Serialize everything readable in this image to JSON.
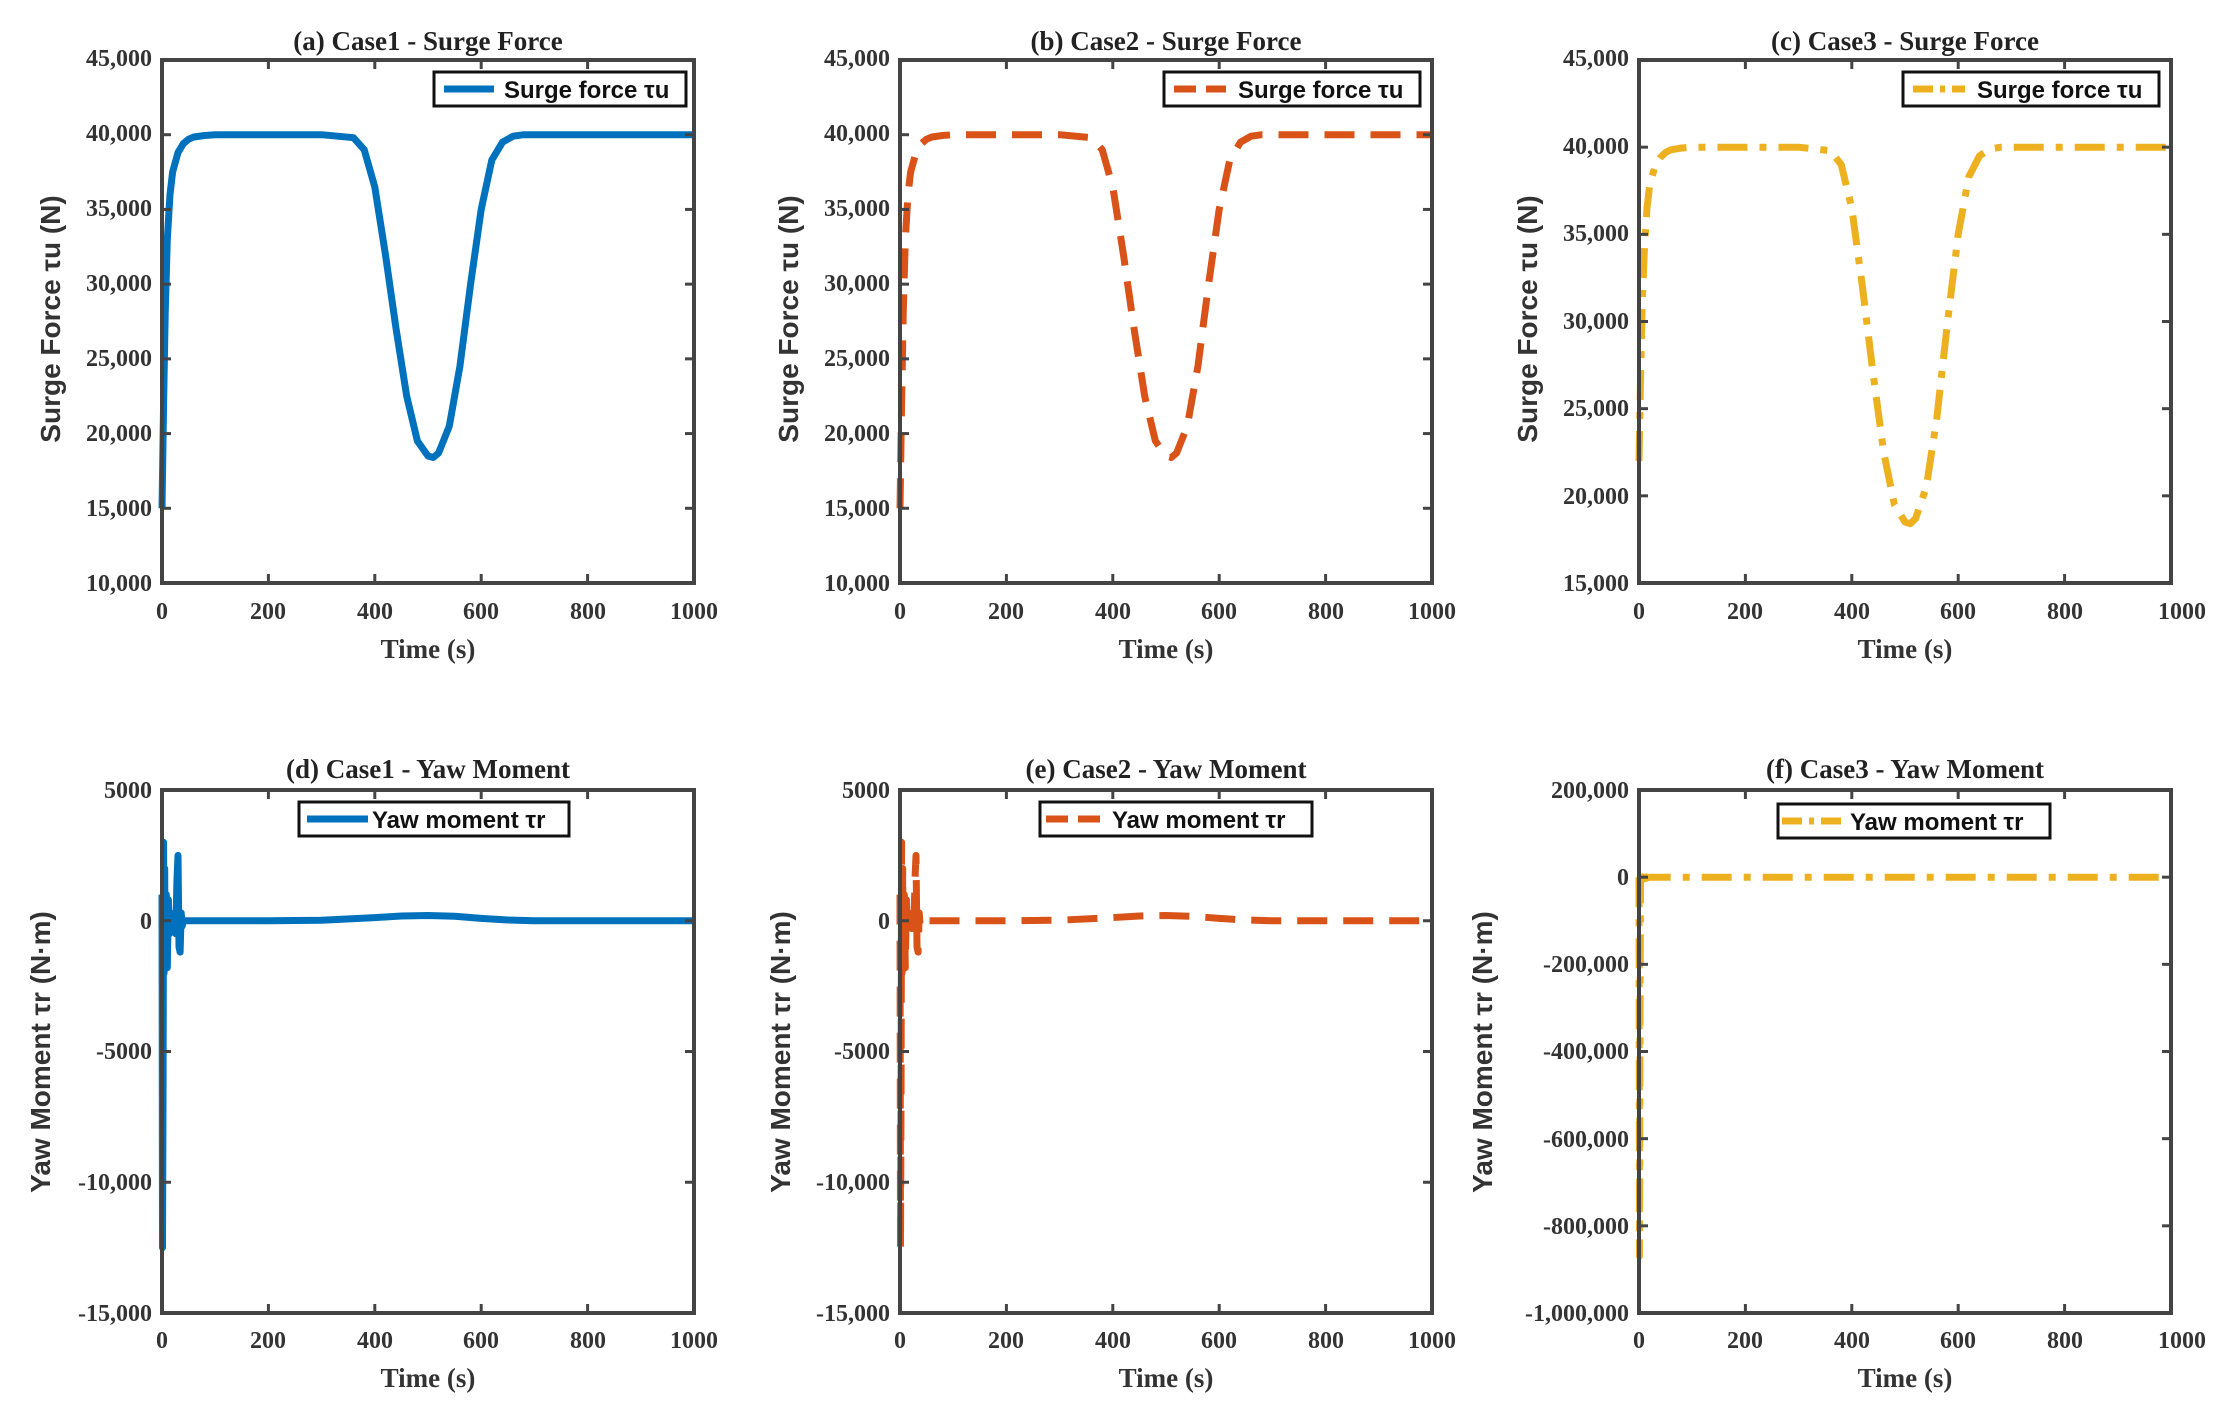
{
  "chart_data": [
    {
      "id": "a",
      "type": "line",
      "title": "(a) Case1 - Surge Force",
      "xlabel": "Time (s)",
      "ylabel": "Surge Force τu (N)",
      "xlim": [
        0,
        1000
      ],
      "ylim": [
        10000,
        45000
      ],
      "xticks": [
        0,
        200,
        400,
        600,
        800,
        1000
      ],
      "xtick_labels": [
        "0",
        "200",
        "400",
        "600",
        "800",
        "1000"
      ],
      "yticks": [
        10000,
        15000,
        20000,
        25000,
        30000,
        35000,
        40000,
        45000
      ],
      "ytick_labels": [
        "10,000",
        "15,000",
        "20,000",
        "25,000",
        "30,000",
        "35,000",
        "40,000",
        "45,000"
      ],
      "legend": "top-right",
      "series": [
        {
          "name": "Surge force τu",
          "color": "#0072BD",
          "style": "solid",
          "x": [
            0,
            3,
            6,
            10,
            15,
            20,
            30,
            40,
            50,
            60,
            80,
            100,
            200,
            300,
            360,
            380,
            400,
            420,
            440,
            460,
            480,
            500,
            510,
            520,
            540,
            560,
            580,
            600,
            620,
            640,
            660,
            680,
            700,
            800,
            900,
            1000
          ],
          "y": [
            15000,
            22000,
            28000,
            33000,
            36000,
            37500,
            38800,
            39400,
            39700,
            39850,
            39950,
            40000,
            40000,
            40000,
            39800,
            39000,
            36500,
            32000,
            27000,
            22500,
            19500,
            18500,
            18400,
            18700,
            20500,
            24500,
            30000,
            35000,
            38300,
            39500,
            39900,
            40000,
            40000,
            40000,
            40000,
            40000
          ]
        }
      ]
    },
    {
      "id": "b",
      "type": "line",
      "title": "(b) Case2 - Surge Force",
      "xlabel": "Time (s)",
      "ylabel": "Surge Force τu (N)",
      "xlim": [
        0,
        1000
      ],
      "ylim": [
        10000,
        45000
      ],
      "xticks": [
        0,
        200,
        400,
        600,
        800,
        1000
      ],
      "xtick_labels": [
        "0",
        "200",
        "400",
        "600",
        "800",
        "1000"
      ],
      "yticks": [
        10000,
        15000,
        20000,
        25000,
        30000,
        35000,
        40000,
        45000
      ],
      "ytick_labels": [
        "10,000",
        "15,000",
        "20,000",
        "25,000",
        "30,000",
        "35,000",
        "40,000",
        "45,000"
      ],
      "legend": "top-right",
      "series": [
        {
          "name": "Surge force τu",
          "color": "#D95319",
          "style": "dashed",
          "x": [
            0,
            3,
            6,
            10,
            15,
            20,
            30,
            40,
            50,
            60,
            80,
            100,
            200,
            300,
            360,
            380,
            400,
            420,
            440,
            460,
            480,
            500,
            510,
            520,
            540,
            560,
            580,
            600,
            620,
            640,
            660,
            680,
            700,
            800,
            900,
            1000
          ],
          "y": [
            15000,
            22000,
            28000,
            33000,
            36000,
            37500,
            38800,
            39400,
            39700,
            39850,
            39950,
            40000,
            40000,
            40000,
            39800,
            39000,
            36500,
            32000,
            27000,
            22500,
            19500,
            18500,
            18400,
            18700,
            20500,
            24500,
            30000,
            35000,
            38300,
            39500,
            39900,
            40000,
            40000,
            40000,
            40000,
            40000
          ]
        }
      ]
    },
    {
      "id": "c",
      "type": "line",
      "title": "(c) Case3 - Surge Force",
      "xlabel": "Time (s)",
      "ylabel": "Surge Force τu (N)",
      "xlim": [
        0,
        1000
      ],
      "ylim": [
        15000,
        45000
      ],
      "xticks": [
        0,
        200,
        400,
        600,
        800,
        1000
      ],
      "xtick_labels": [
        "0",
        "200",
        "400",
        "600",
        "800",
        "1000"
      ],
      "yticks": [
        15000,
        20000,
        25000,
        30000,
        35000,
        40000,
        45000
      ],
      "ytick_labels": [
        "15,000",
        "20,000",
        "25,000",
        "30,000",
        "35,000",
        "40,000",
        "45,000"
      ],
      "legend": "top-right",
      "series": [
        {
          "name": "Surge force τu",
          "color": "#EDB120",
          "style": "dashdot",
          "x": [
            0,
            3,
            6,
            10,
            15,
            20,
            30,
            40,
            50,
            60,
            80,
            100,
            200,
            300,
            360,
            380,
            400,
            420,
            440,
            460,
            480,
            500,
            510,
            520,
            540,
            560,
            580,
            600,
            620,
            640,
            660,
            680,
            700,
            800,
            900,
            1000
          ],
          "y": [
            22000,
            27000,
            31000,
            34000,
            36500,
            37800,
            38900,
            39400,
            39700,
            39850,
            39950,
            40000,
            40000,
            40000,
            39800,
            39000,
            36500,
            32000,
            27000,
            22500,
            19500,
            18500,
            18400,
            18700,
            20500,
            24500,
            30000,
            35000,
            38300,
            39500,
            39900,
            40000,
            40000,
            40000,
            40000,
            40000
          ]
        }
      ]
    },
    {
      "id": "d",
      "type": "line",
      "title": "(d) Case1 - Yaw Moment",
      "xlabel": "Time (s)",
      "ylabel": "Yaw Moment τr (N·m)",
      "xlim": [
        0,
        1000
      ],
      "ylim": [
        -15000,
        5000
      ],
      "xticks": [
        0,
        200,
        400,
        600,
        800,
        1000
      ],
      "xtick_labels": [
        "0",
        "200",
        "400",
        "600",
        "800",
        "1000"
      ],
      "yticks": [
        -15000,
        -10000,
        -5000,
        0,
        5000
      ],
      "ytick_labels": [
        "-15,000",
        "-10,000",
        "-5000",
        "0",
        "5000"
      ],
      "legend": "top-center",
      "series": [
        {
          "name": "Yaw moment τr",
          "color": "#0072BD",
          "style": "solid",
          "x": [
            0,
            1,
            2,
            3,
            4,
            5,
            6,
            8,
            10,
            12,
            14,
            16,
            18,
            20,
            22,
            24,
            26,
            28,
            30,
            32,
            34,
            36,
            38,
            40,
            45,
            50,
            100,
            200,
            300,
            400,
            450,
            500,
            550,
            600,
            650,
            700,
            800,
            900,
            1000
          ],
          "y": [
            1000,
            -12500,
            -6000,
            3000,
            -2000,
            2000,
            -1500,
            1000,
            -1800,
            800,
            -500,
            300,
            -200,
            200,
            -300,
            200,
            -500,
            1500,
            2500,
            -1000,
            -1200,
            300,
            -200,
            0,
            0,
            0,
            0,
            0,
            20,
            120,
            180,
            200,
            170,
            90,
            30,
            0,
            0,
            0,
            0
          ]
        }
      ]
    },
    {
      "id": "e",
      "type": "line",
      "title": "(e) Case2 - Yaw Moment",
      "xlabel": "Time (s)",
      "ylabel": "Yaw Moment τr (N·m)",
      "xlim": [
        0,
        1000
      ],
      "ylim": [
        -15000,
        5000
      ],
      "xticks": [
        0,
        200,
        400,
        600,
        800,
        1000
      ],
      "xtick_labels": [
        "0",
        "200",
        "400",
        "600",
        "800",
        "1000"
      ],
      "yticks": [
        -15000,
        -10000,
        -5000,
        0,
        5000
      ],
      "ytick_labels": [
        "-15,000",
        "-10,000",
        "-5000",
        "0",
        "5000"
      ],
      "legend": "top-center",
      "series": [
        {
          "name": "Yaw moment τr",
          "color": "#D95319",
          "style": "dashed",
          "x": [
            0,
            1,
            2,
            3,
            4,
            5,
            6,
            8,
            10,
            12,
            14,
            16,
            18,
            20,
            22,
            24,
            26,
            28,
            30,
            32,
            34,
            36,
            38,
            40,
            45,
            50,
            100,
            200,
            300,
            400,
            450,
            500,
            550,
            600,
            650,
            700,
            800,
            900,
            1000
          ],
          "y": [
            1000,
            -12500,
            -6000,
            3000,
            -2000,
            2000,
            -1500,
            1000,
            -1800,
            800,
            -500,
            300,
            -200,
            200,
            -300,
            200,
            -500,
            1500,
            2500,
            -1000,
            -1200,
            300,
            -200,
            0,
            0,
            0,
            0,
            0,
            20,
            120,
            180,
            200,
            170,
            90,
            30,
            0,
            0,
            0,
            0
          ]
        }
      ]
    },
    {
      "id": "f",
      "type": "line",
      "title": "(f) Case3 - Yaw Moment",
      "xlabel": "Time (s)",
      "ylabel": "Yaw Moment τr (N·m)",
      "xlim": [
        0,
        1000
      ],
      "ylim": [
        -1000000,
        200000
      ],
      "xticks": [
        0,
        200,
        400,
        600,
        800,
        1000
      ],
      "xtick_labels": [
        "0",
        "200",
        "400",
        "600",
        "800",
        "1000"
      ],
      "yticks": [
        -1000000,
        -800000,
        -600000,
        -400000,
        -200000,
        0,
        200000
      ],
      "ytick_labels": [
        "-1,000,000",
        "-800,000",
        "-600,000",
        "-400,000",
        "-200,000",
        "0",
        "200,000"
      ],
      "legend": "top-center",
      "series": [
        {
          "name": "Yaw moment τr",
          "color": "#EDB120",
          "style": "dashdot",
          "x": [
            0,
            1,
            2,
            3,
            5,
            8,
            12,
            20,
            50,
            100,
            500,
            1000
          ],
          "y": [
            0,
            -870000,
            -300000,
            20000,
            -15000,
            8000,
            -3000,
            0,
            0,
            0,
            0,
            0
          ]
        }
      ]
    }
  ]
}
